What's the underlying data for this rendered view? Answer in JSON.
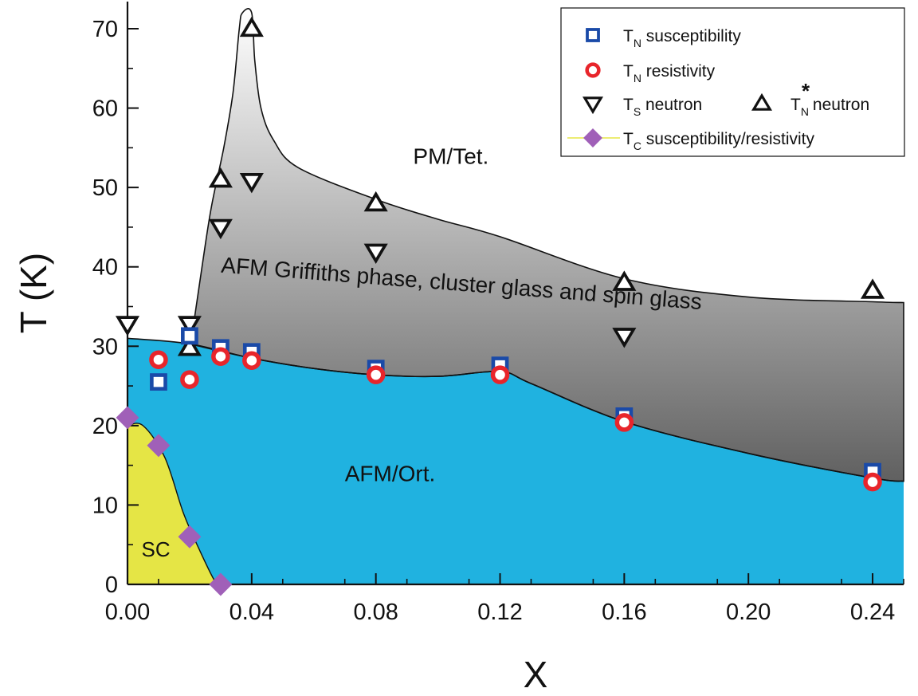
{
  "chart_data": {
    "type": "scatter",
    "title": "",
    "xlabel": "X",
    "ylabel": "T (K)",
    "xlim": [
      0.0,
      0.25
    ],
    "ylim": [
      0,
      72
    ],
    "xticks": [
      0.0,
      0.04,
      0.08,
      0.12,
      0.16,
      0.2,
      0.24
    ],
    "xtick_labels": [
      "0.00",
      "0.04",
      "0.08",
      "0.12",
      "0.16",
      "0.20",
      "0.24"
    ],
    "yticks": [
      0,
      10,
      20,
      30,
      40,
      50,
      60,
      70
    ],
    "ytick_labels": [
      "0",
      "10",
      "20",
      "30",
      "40",
      "50",
      "60",
      "70"
    ],
    "grid": false,
    "legend_position": "top-right",
    "regions": [
      {
        "name": "PM/Tet.",
        "color": "#ffffff",
        "label_at": [
          0.092,
          53
        ]
      },
      {
        "name": "AFM Griffiths phase, cluster glass and spin glass",
        "color": "#7a7a7a",
        "label_at": [
          0.03,
          39.3
        ]
      },
      {
        "name": "AFM/Ort.",
        "color": "#20b2e0",
        "label_at": [
          0.07,
          13
        ]
      },
      {
        "name": "SC",
        "color": "#e5e545",
        "label_at": [
          0.0045,
          3.5
        ]
      }
    ],
    "boundaries": {
      "afm_upper": [
        [
          0.0,
          31
        ],
        [
          0.02,
          30.3
        ],
        [
          0.04,
          28.5
        ],
        [
          0.06,
          27.2
        ],
        [
          0.08,
          26.4
        ],
        [
          0.1,
          26.2
        ],
        [
          0.12,
          26.8
        ],
        [
          0.13,
          25.3
        ],
        [
          0.16,
          20.5
        ],
        [
          0.2,
          16.5
        ],
        [
          0.24,
          13.4
        ],
        [
          0.25,
          13
        ]
      ],
      "sc_dome": [
        [
          0.0,
          20
        ],
        [
          0.005,
          20
        ],
        [
          0.012,
          16
        ],
        [
          0.018,
          9
        ],
        [
          0.023,
          4.5
        ],
        [
          0.028,
          0.5
        ],
        [
          0.03,
          0
        ]
      ],
      "griffiths_upper": [
        [
          0.02,
          30.3
        ],
        [
          0.021,
          32
        ],
        [
          0.024,
          40
        ],
        [
          0.027,
          47.5
        ],
        [
          0.031,
          55
        ],
        [
          0.034,
          62
        ],
        [
          0.036,
          70
        ],
        [
          0.037,
          72
        ],
        [
          0.04,
          72
        ],
        [
          0.041,
          66
        ],
        [
          0.043,
          60
        ],
        [
          0.047,
          56
        ],
        [
          0.055,
          52.5
        ],
        [
          0.08,
          48.5
        ],
        [
          0.1,
          46
        ],
        [
          0.12,
          43.8
        ],
        [
          0.16,
          38.5
        ],
        [
          0.2,
          36.2
        ],
        [
          0.24,
          35.6
        ],
        [
          0.25,
          35.5
        ]
      ]
    },
    "series": [
      {
        "name": "T_N susceptibility",
        "legend_label": "T",
        "legend_sub": "N",
        "legend_suffix": " susceptibility",
        "marker": "square",
        "color": "#1a4aa8",
        "x": [
          0.01,
          0.02,
          0.03,
          0.04,
          0.08,
          0.12,
          0.16,
          0.24
        ],
        "y": [
          25.5,
          31.3,
          29.8,
          29.3,
          27.2,
          27.6,
          21.2,
          14.2
        ]
      },
      {
        "name": "T_N resistivity",
        "legend_label": "T",
        "legend_sub": "N",
        "legend_suffix": " resistivity",
        "marker": "circle",
        "color": "#e8252b",
        "x": [
          0.01,
          0.02,
          0.03,
          0.04,
          0.08,
          0.12,
          0.16,
          0.24
        ],
        "y": [
          28.3,
          25.8,
          28.7,
          28.2,
          26.4,
          26.4,
          20.4,
          12.9
        ]
      },
      {
        "name": "T_S neutron",
        "legend_label": "T",
        "legend_sub": "S",
        "legend_suffix": " neutron",
        "marker": "triangle-down",
        "color": "#111111",
        "x": [
          0.0,
          0.02,
          0.03,
          0.04,
          0.08,
          0.16
        ],
        "y": [
          32.8,
          32.8,
          45,
          50.8,
          41.9,
          31.3
        ]
      },
      {
        "name": "T_N* neutron",
        "legend_label": "T",
        "legend_sub": "N",
        "legend_sup": "*",
        "legend_suffix": " neutron",
        "marker": "triangle-up",
        "color": "#111111",
        "x": [
          0.02,
          0.03,
          0.04,
          0.08,
          0.16,
          0.24
        ],
        "y": [
          29.8,
          51,
          70,
          48,
          38,
          37
        ]
      },
      {
        "name": "T_C susceptibility/resistivity",
        "legend_label": "T",
        "legend_sub": "C",
        "legend_suffix": " susceptibility/resistivity",
        "marker": "diamond",
        "color": "#a060b8",
        "x": [
          0.0,
          0.01,
          0.02,
          0.03
        ],
        "y": [
          21,
          17.5,
          6,
          0
        ]
      }
    ]
  }
}
